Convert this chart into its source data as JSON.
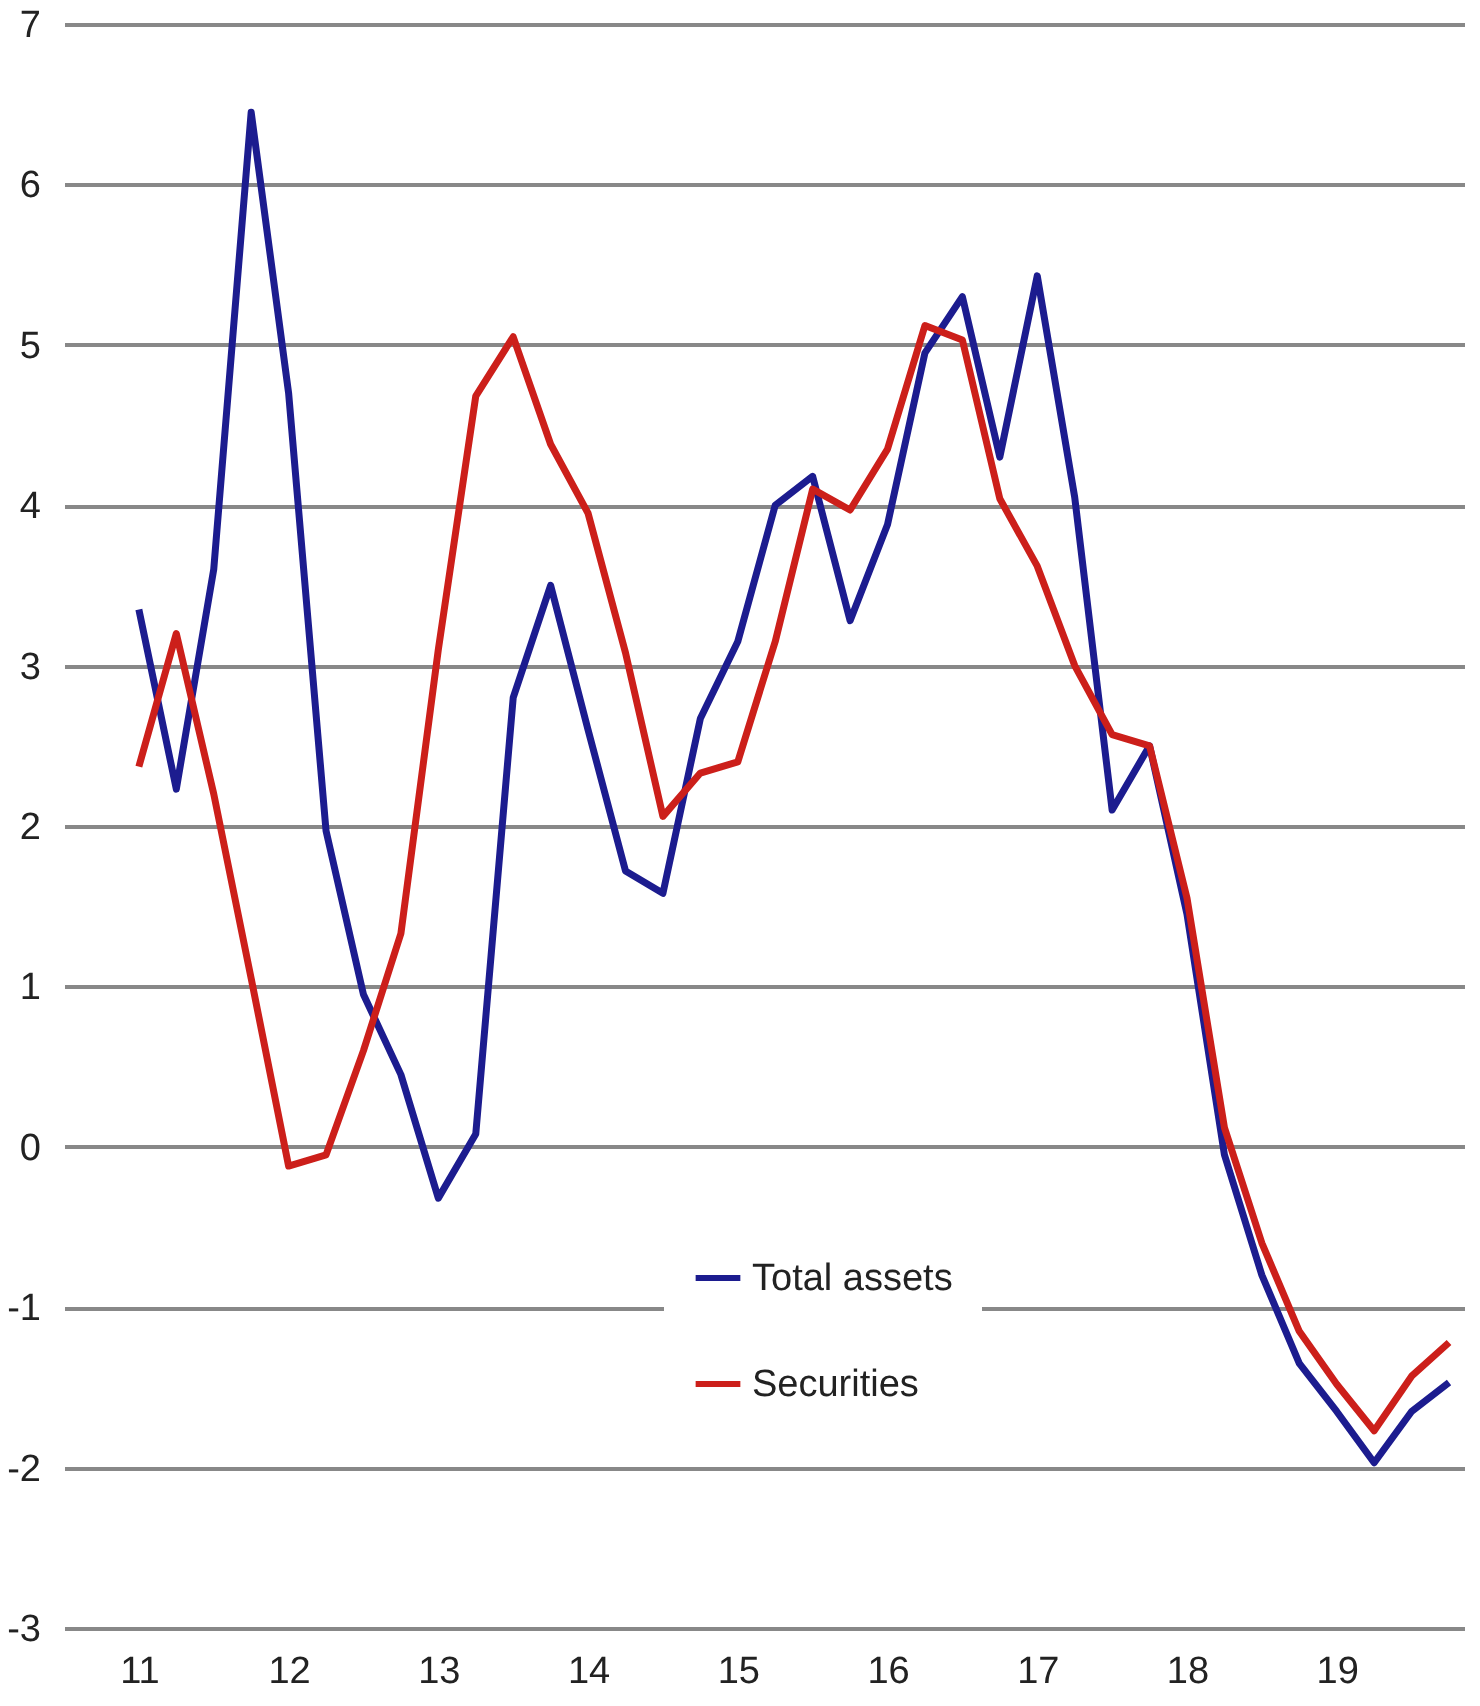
{
  "chart_data": {
    "type": "line",
    "x": [
      2011.0,
      2011.25,
      2011.5,
      2011.75,
      2012.0,
      2012.25,
      2012.5,
      2012.75,
      2013.0,
      2013.25,
      2013.5,
      2013.75,
      2014.0,
      2014.25,
      2014.5,
      2014.75,
      2015.0,
      2015.25,
      2015.5,
      2015.75,
      2016.0,
      2016.25,
      2016.5,
      2016.75,
      2017.0,
      2017.25,
      2017.5,
      2017.75,
      2018.0,
      2018.25,
      2018.5,
      2018.75,
      2019.0,
      2019.25,
      2019.5,
      2019.75
    ],
    "series": [
      {
        "name": "Total assets",
        "color": "#1c1c8f",
        "values": [
          3.35,
          2.23,
          3.6,
          6.45,
          4.7,
          1.97,
          0.95,
          0.45,
          -0.32,
          0.08,
          2.8,
          3.5,
          2.6,
          1.72,
          1.58,
          2.67,
          3.15,
          4.0,
          4.18,
          3.28,
          3.88,
          4.95,
          5.3,
          4.3,
          5.43,
          4.05,
          2.1,
          2.5,
          1.45,
          -0.05,
          -0.8,
          -1.35,
          -1.65,
          -1.97,
          -1.65,
          -1.47
        ]
      },
      {
        "name": "Securities",
        "color": "#cc1f1a",
        "values": [
          2.37,
          3.2,
          2.2,
          1.05,
          -0.12,
          -0.05,
          0.6,
          1.33,
          3.1,
          4.68,
          5.05,
          4.38,
          3.95,
          3.08,
          2.06,
          2.33,
          2.4,
          3.15,
          4.1,
          3.97,
          4.35,
          5.12,
          5.03,
          4.04,
          3.62,
          3.0,
          2.57,
          2.5,
          1.55,
          0.12,
          -0.6,
          -1.15,
          -1.48,
          -1.77,
          -1.43,
          -1.22
        ]
      }
    ],
    "xlim": [
      2010.5,
      2019.85
    ],
    "xticks": [
      {
        "value": 2011,
        "label": "11"
      },
      {
        "value": 2012,
        "label": "12"
      },
      {
        "value": 2013,
        "label": "13"
      },
      {
        "value": 2014,
        "label": "14"
      },
      {
        "value": 2015,
        "label": "15"
      },
      {
        "value": 2016,
        "label": "16"
      },
      {
        "value": 2017,
        "label": "17"
      },
      {
        "value": 2018,
        "label": "18"
      },
      {
        "value": 2019,
        "label": "19"
      }
    ],
    "ylim": [
      -3,
      7
    ],
    "yticks": [
      -3,
      -2,
      -1,
      0,
      1,
      2,
      3,
      4,
      5,
      6,
      7
    ],
    "grid": "y",
    "legend": "bottom",
    "line_style": "solid",
    "marker": "none"
  }
}
